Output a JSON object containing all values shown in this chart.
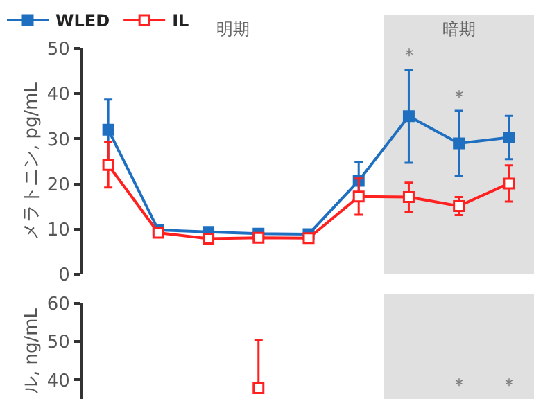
{
  "chart_data": [
    {
      "type": "line",
      "ylabel": "メラトニン, pg/mL",
      "categories": [
        null,
        null,
        null,
        null,
        null,
        null,
        null,
        null,
        null
      ],
      "ylim": [
        0,
        50
      ],
      "yticks": [
        0,
        10,
        20,
        30,
        40,
        50
      ],
      "tick_labels": "y",
      "grid": false,
      "legend": "top left",
      "marker": "square",
      "line_style": "solid",
      "series": [
        {
          "name": "WLED",
          "color": "#1f6fc0",
          "values": [
            32,
            9.8,
            9.4,
            9,
            8.9,
            20.7,
            35,
            29,
            30.3
          ],
          "errors": [
            6.7,
            null,
            null,
            null,
            null,
            4.1,
            10.3,
            7.2,
            4.8
          ],
          "value_labels": [
            null,
            null,
            null,
            null,
            null,
            null,
            "*",
            "*",
            null
          ]
        },
        {
          "name": "IL",
          "color": "#ff2020",
          "values": [
            24.2,
            9.2,
            7.9,
            8.1,
            8,
            17.2,
            17.1,
            15.1,
            20.1
          ],
          "errors": [
            5,
            null,
            null,
            null,
            null,
            4,
            3.2,
            2,
            4
          ]
        }
      ],
      "annotations": [
        "明期",
        "暗期"
      ]
    },
    {
      "type": "line",
      "ylabel": "ル, ng/mL",
      "categories": [
        null,
        null,
        null,
        null,
        null,
        null,
        null,
        null,
        null
      ],
      "ylim": [
        35,
        60
      ],
      "yticks": [
        40,
        50,
        60
      ],
      "tick_labels": "y",
      "legend": false,
      "marker": "square",
      "line_style": "solid",
      "series": [
        {
          "color": "#1f6fc0",
          "values": [
            null,
            null,
            null,
            null,
            null,
            null,
            null,
            null,
            null
          ],
          "value_labels": [
            null,
            null,
            null,
            null,
            null,
            null,
            null,
            "*",
            "*"
          ]
        },
        {
          "color": "#ff2020",
          "values": [
            null,
            null,
            null,
            37.8,
            null,
            null,
            null,
            null,
            null
          ],
          "errors": [
            null,
            null,
            null,
            [
              37.8,
              50.5
            ],
            null,
            null,
            null,
            null,
            null
          ]
        }
      ],
      "grid": false
    }
  ]
}
